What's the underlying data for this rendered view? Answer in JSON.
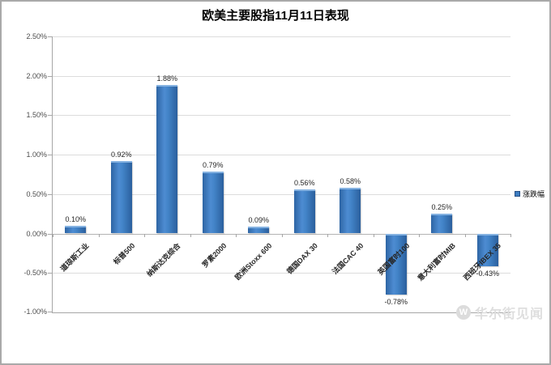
{
  "title": "欧美主要股指11月11日表现",
  "legend": {
    "label": "涨跌幅"
  },
  "watermark": {
    "text": "华尔街见闻",
    "logo_letter": "W"
  },
  "colors": {
    "bar_main": "#3d7dc1",
    "bar_edge_dark": "#2b5f9d",
    "bar_highlight": "#85b2e1",
    "grid": "#dcdcdc",
    "zero_line": "#b3b3b3",
    "axis": "#a6a6a6",
    "label_text": "#262626"
  },
  "chart_data": {
    "type": "bar",
    "title": "欧美主要股指11月11日表现",
    "series_name": "涨跌幅",
    "categories": [
      "道琼斯工业",
      "标普500",
      "纳斯达克综合",
      "罗素2000",
      "欧洲Stoxx 600",
      "德国DAX 30",
      "法国CAC 40",
      "英国富时100",
      "意大利富时MIB",
      "西班牙IBEX 35"
    ],
    "values": [
      0.1,
      0.92,
      1.88,
      0.79,
      0.09,
      0.56,
      0.58,
      -0.78,
      0.25,
      -0.43
    ],
    "value_labels": [
      "0.10%",
      "0.92%",
      "1.88%",
      "0.79%",
      "0.09%",
      "0.56%",
      "0.58%",
      "-0.78%",
      "0.25%",
      "-0.43%"
    ],
    "xlabel": "",
    "ylabel": "",
    "ylim": [
      -1.0,
      2.5
    ],
    "ytick_step": 0.5,
    "ytick_labels": [
      "2.50%",
      "2.00%",
      "1.50%",
      "1.00%",
      "0.50%",
      "0.00%",
      "-0.50%",
      "-1.00%"
    ],
    "grid": true,
    "legend_position": "right"
  }
}
